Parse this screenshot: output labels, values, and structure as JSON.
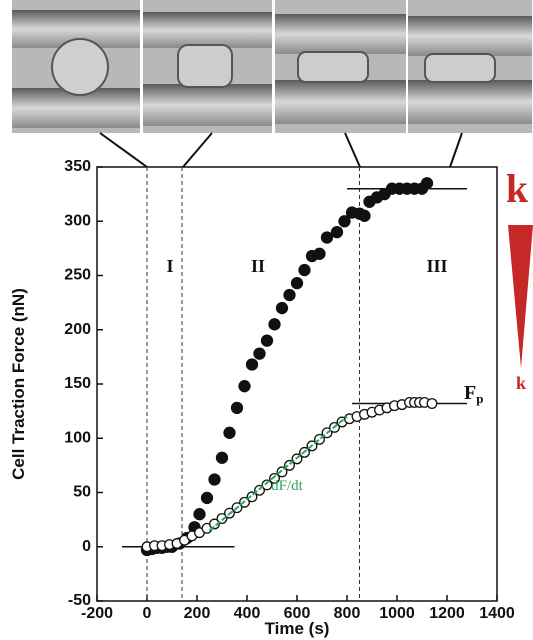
{
  "chart_data": {
    "type": "scatter",
    "x_label": "Time (s)",
    "y_label": "Cell Traction Force (nN)",
    "xlim": [
      -200,
      1400
    ],
    "xticks": [
      -200,
      0,
      200,
      400,
      600,
      800,
      1000,
      1200,
      1400
    ],
    "ylim": [
      -50,
      350
    ],
    "yticks": [
      -50,
      0,
      50,
      100,
      150,
      200,
      250,
      300,
      350
    ],
    "series": [
      {
        "marker": "filled",
        "color": "#111111",
        "x": [
          0,
          20,
          40,
          60,
          80,
          100,
          130,
          160,
          190,
          210,
          240,
          270,
          300,
          330,
          360,
          390,
          420,
          450,
          480,
          510,
          540,
          570,
          600,
          630,
          660,
          690,
          720,
          760,
          790,
          820,
          850,
          870,
          890,
          920,
          950,
          980,
          1010,
          1040,
          1070,
          1100,
          1120
        ],
        "values": [
          -3,
          -2,
          -1,
          -1,
          0,
          0,
          3,
          8,
          18,
          30,
          45,
          62,
          82,
          105,
          128,
          148,
          168,
          178,
          190,
          205,
          220,
          232,
          243,
          255,
          268,
          270,
          285,
          290,
          300,
          308,
          307,
          305,
          318,
          322,
          325,
          330,
          330,
          330,
          330,
          330,
          335
        ]
      },
      {
        "marker": "open",
        "color": "#111111",
        "x": [
          0,
          30,
          60,
          90,
          120,
          150,
          180,
          210,
          240,
          270,
          300,
          330,
          360,
          390,
          420,
          450,
          480,
          510,
          540,
          570,
          600,
          630,
          660,
          690,
          720,
          750,
          780,
          810,
          840,
          870,
          900,
          930,
          960,
          990,
          1020,
          1050,
          1070,
          1090,
          1110,
          1140
        ],
        "values": [
          0,
          1,
          1,
          2,
          3,
          6,
          10,
          13,
          17,
          21,
          26,
          31,
          36,
          41,
          46,
          52,
          57,
          63,
          69,
          75,
          81,
          87,
          93,
          99,
          105,
          110,
          115,
          118,
          120,
          122,
          124,
          126,
          128,
          130,
          131,
          133,
          133,
          133,
          133,
          132
        ]
      }
    ],
    "fit_line": {
      "label": "dF/dt",
      "color": "#2ca55a",
      "x": [
        250,
        800
      ],
      "y": [
        15,
        120
      ]
    },
    "horizontal_lines": [
      {
        "y": 0,
        "x": [
          -100,
          350
        ]
      },
      {
        "y": 330,
        "x": [
          800,
          1280
        ]
      },
      {
        "y": 132,
        "x": [
          820,
          1280
        ]
      }
    ],
    "vertical_lines": [
      0,
      140,
      850
    ],
    "regions": [
      "I",
      "II",
      "III"
    ],
    "force_label": {
      "text": "F",
      "subscript": "p"
    },
    "stiffness_label": "k",
    "stiffness_color": "#c62828"
  }
}
